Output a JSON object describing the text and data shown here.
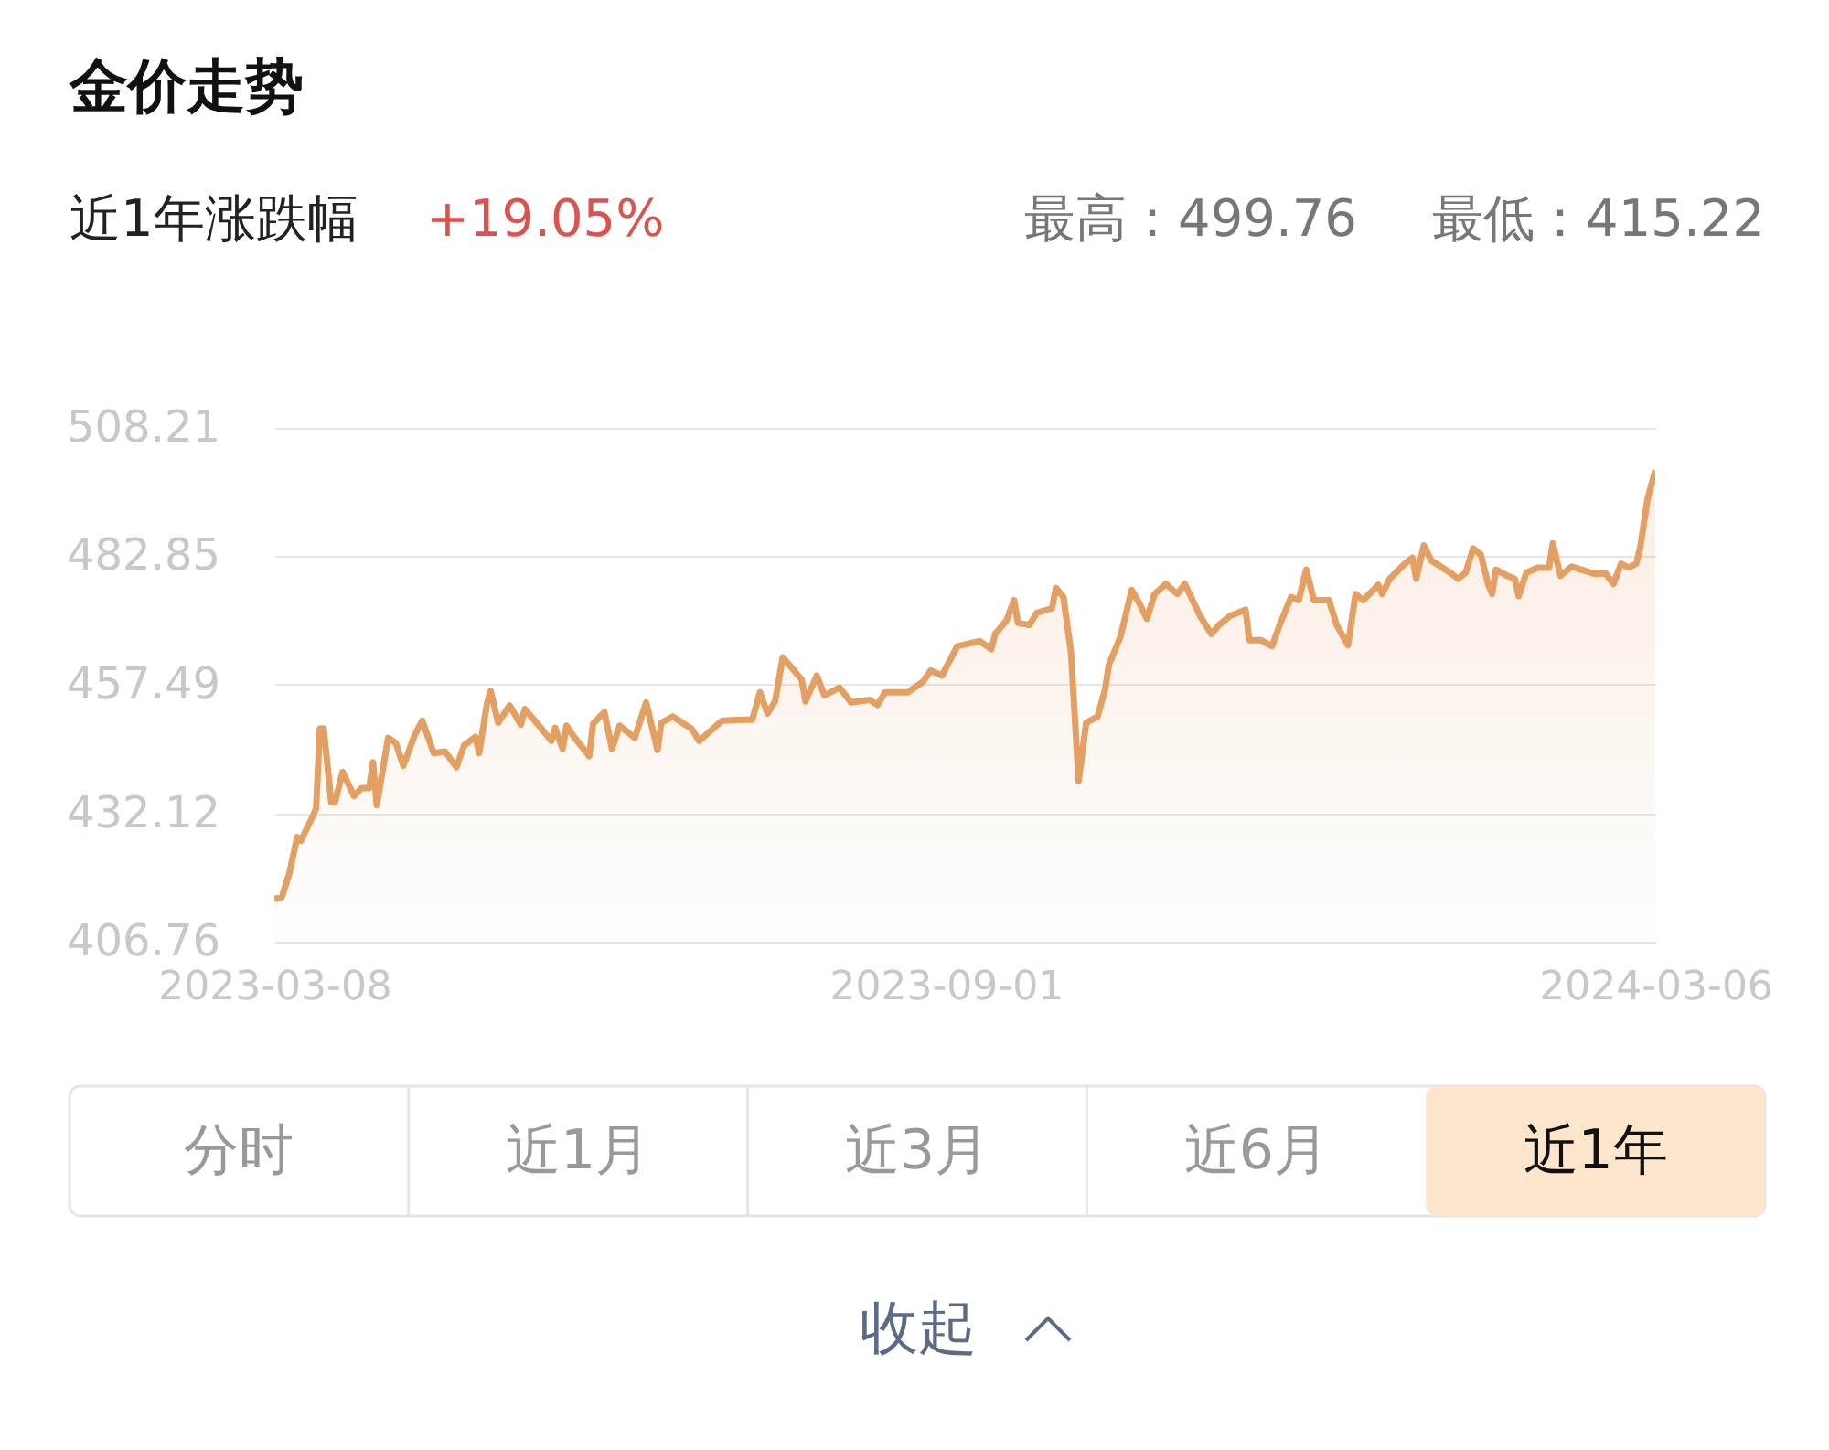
{
  "chart_data": {
    "type": "area",
    "title": "金价走势",
    "annotations": [
      "近1年涨跌幅",
      "+19.05%",
      "最高：499.76",
      "最低：415.22",
      "分时",
      "近1月",
      "近3月",
      "近6月",
      "近1年",
      "收起"
    ],
    "x": [
      "2023-03-08",
      "2023-03-10",
      "2023-03-12",
      "2023-03-14",
      "2023-03-15",
      "2023-03-18",
      "2023-03-19",
      "2023-03-20",
      "2023-03-21",
      "2023-03-23",
      "2023-03-24",
      "2023-03-26",
      "2023-03-29",
      "2023-03-31",
      "2023-04-02",
      "2023-04-03",
      "2023-04-04",
      "2023-04-07",
      "2023-04-09",
      "2023-04-11",
      "2023-04-14",
      "2023-04-16",
      "2023-04-19",
      "2023-04-22",
      "2023-04-25",
      "2023-04-27",
      "2023-04-30",
      "2023-05-01",
      "2023-05-03",
      "2023-05-04",
      "2023-05-06",
      "2023-05-09",
      "2023-05-12",
      "2023-05-13",
      "2023-05-17",
      "2023-05-20",
      "2023-05-21",
      "2023-05-23",
      "2023-05-24",
      "2023-05-26",
      "2023-05-30",
      "2023-05-31",
      "2023-06-03",
      "2023-06-05",
      "2023-06-07",
      "2023-06-11",
      "2023-06-14",
      "2023-06-17",
      "2023-06-18",
      "2023-06-21",
      "2023-06-26",
      "2023-06-28",
      "2023-07-04",
      "2023-07-09",
      "2023-07-12",
      "2023-07-14",
      "2023-07-16",
      "2023-07-18",
      "2023-07-20",
      "2023-07-22",
      "2023-07-25",
      "2023-07-26",
      "2023-07-29",
      "2023-07-31",
      "2023-08-04",
      "2023-08-07",
      "2023-08-12",
      "2023-08-14",
      "2023-08-16",
      "2023-08-22",
      "2023-08-26",
      "2023-08-28",
      "2023-08-31",
      "2023-09-04",
      "2023-09-10",
      "2023-09-13",
      "2023-09-14",
      "2023-09-17",
      "2023-09-19",
      "2023-09-20",
      "2023-09-23",
      "2023-09-25",
      "2023-09-29",
      "2023-09-30",
      "2023-10-02",
      "2023-10-04",
      "2023-10-06",
      "2023-10-08",
      "2023-10-11",
      "2023-10-13",
      "2023-10-14",
      "2023-10-17",
      "2023-10-20",
      "2023-10-22",
      "2023-10-24",
      "2023-10-26",
      "2023-10-29",
      "2023-11-01",
      "2023-11-03",
      "2023-11-07",
      "2023-11-10",
      "2023-11-12",
      "2023-11-15",
      "2023-11-19",
      "2023-11-20",
      "2023-11-23",
      "2023-11-26",
      "2023-11-28",
      "2023-12-01",
      "2023-12-03",
      "2023-12-05",
      "2023-12-07",
      "2023-12-11",
      "2023-12-13",
      "2023-12-16",
      "2023-12-18",
      "2023-12-20",
      "2023-12-24",
      "2023-12-25",
      "2023-12-27",
      "2023-12-31",
      "2024-01-02",
      "2024-01-03",
      "2024-01-05",
      "2024-01-07",
      "2024-01-12",
      "2024-01-14",
      "2024-01-16",
      "2024-01-18",
      "2024-01-20",
      "2024-01-22",
      "2024-01-23",
      "2024-01-24",
      "2024-01-27",
      "2024-01-29",
      "2024-01-30",
      "2024-02-01",
      "2024-02-04",
      "2024-02-07",
      "2024-02-08",
      "2024-02-10",
      "2024-02-13",
      "2024-02-19",
      "2024-02-22",
      "2024-02-24",
      "2024-02-26",
      "2024-02-28",
      "2024-03-01",
      "2024-03-02",
      "2024-03-04",
      "2024-03-06"
    ],
    "series": [
      {
        "color": "#e3a062",
        "values": [
          415.2,
          415.6,
          420.4,
          427.4,
          426.7,
          431.3,
          433.1,
          448.8,
          448.8,
          434.3,
          434.3,
          440.3,
          435.5,
          437.1,
          437.1,
          442.2,
          433.7,
          447.0,
          446.0,
          441.5,
          447.6,
          450.4,
          444.0,
          444.3,
          441.2,
          445.5,
          447.2,
          444.0,
          453.6,
          456.3,
          450.0,
          453.4,
          449.6,
          452.7,
          449.2,
          446.4,
          449.0,
          444.8,
          449.4,
          447.2,
          443.4,
          449.8,
          452.1,
          444.8,
          449.4,
          447.0,
          454.0,
          444.6,
          450.0,
          451.2,
          448.8,
          446.4,
          450.4,
          450.6,
          450.6,
          456.0,
          451.8,
          454.2,
          462.9,
          461.2,
          458.5,
          454.2,
          459.3,
          455.4,
          456.9,
          454.0,
          454.5,
          453.5,
          456.0,
          456.0,
          458.1,
          460.3,
          459.3,
          465.1,
          466.1,
          464.5,
          467.5,
          470.2,
          474.2,
          469.7,
          469.3,
          471.7,
          472.6,
          476.6,
          474.8,
          463.9,
          438.5,
          450.0,
          451.2,
          456.6,
          461.5,
          466.9,
          476.2,
          473.6,
          470.5,
          475.4,
          477.4,
          475.4,
          477.4,
          471.1,
          467.5,
          469.3,
          471.1,
          472.3,
          466.3,
          466.3,
          465.1,
          469.3,
          474.8,
          474.2,
          480.2,
          474.2,
          474.2,
          469.3,
          465.3,
          475.4,
          474.2,
          477.2,
          475.4,
          478.4,
          481.4,
          482.6,
          478.4,
          485.0,
          482.0,
          479.6,
          478.4,
          479.6,
          484.4,
          483.2,
          477.2,
          475.4,
          480.2,
          479.0,
          478.4,
          475.0,
          479.6,
          480.6,
          480.6,
          485.4,
          479.0,
          480.8,
          479.4,
          479.4,
          477.4,
          481.4,
          480.6,
          481.4,
          484.4,
          494.3,
          499.8
        ]
      }
    ],
    "xlim": [
      "2023-03-08",
      "2024-03-06"
    ],
    "xticks": [
      "2023-03-08",
      "2023-09-01",
      "2024-03-06"
    ],
    "ylim": [
      406.76,
      508.21
    ],
    "yticks": [
      406.76,
      432.12,
      457.49,
      482.85,
      508.21
    ],
    "grid": "y",
    "legend": false
  }
}
